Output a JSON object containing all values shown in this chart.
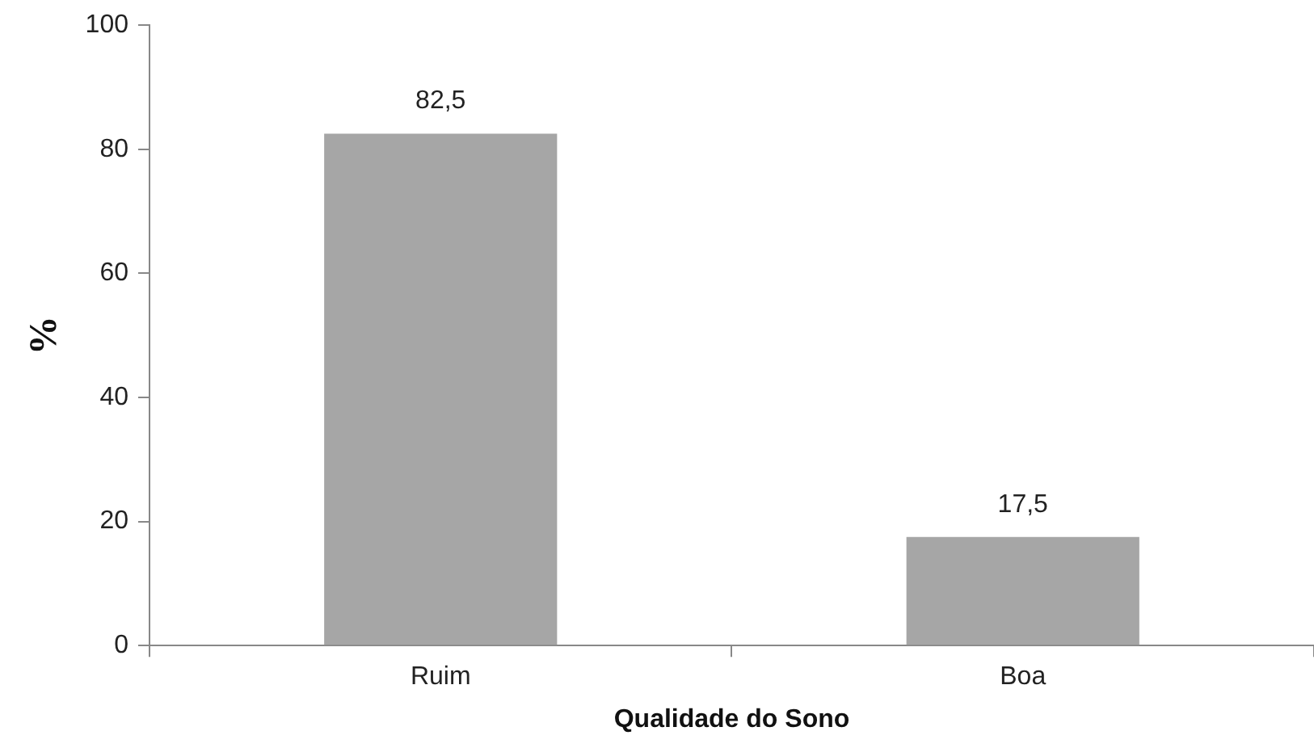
{
  "chart_data": {
    "type": "bar",
    "xlabel": "Qualidade do Sono",
    "ylabel": "%",
    "categories": [
      "Ruim",
      "Boa"
    ],
    "values": [
      82.5,
      17.5
    ],
    "color": "#a6a6a6",
    "value_labels": [
      "82,5",
      "17,5"
    ],
    "ylim": [
      0,
      100
    ],
    "yticks": [
      0,
      20,
      40,
      60,
      80,
      100
    ],
    "grid": false,
    "legend": false
  }
}
